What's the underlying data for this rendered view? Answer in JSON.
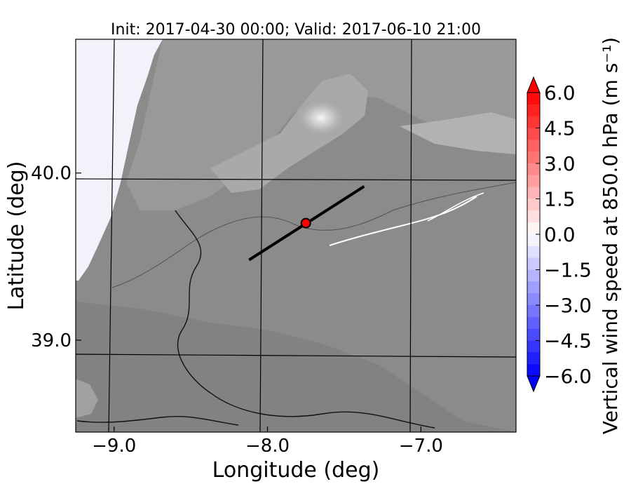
{
  "chart_data": {
    "type": "heatmap",
    "title": "Init: 2017-04-30 00:00; Valid: 2017-06-10 21:00",
    "xlabel": "Longitude (deg)",
    "ylabel": "Latitude (deg)",
    "xlim": [
      -9.25,
      -6.38
    ],
    "ylim": [
      38.45,
      40.8
    ],
    "xticks": [
      -9.0,
      -8.0,
      -7.0
    ],
    "xtick_labels": [
      "−9.0",
      "−8.0",
      "−7.0"
    ],
    "yticks": [
      39.0,
      40.0
    ],
    "ytick_labels": [
      "39.0",
      "40.0"
    ],
    "grid": true,
    "cross_section_line": {
      "start": [
        -8.12,
        39.48
      ],
      "end": [
        -7.37,
        39.92
      ]
    },
    "marker": {
      "lon": -7.75,
      "lat": 39.7,
      "color": "#ff0000"
    },
    "colorbar": {
      "label": "Vertical wind speed at 850.0 hPa (m s⁻¹)",
      "min": -6.0,
      "max": 6.0,
      "ticks": [
        6.0,
        4.5,
        3.0,
        1.5,
        0.0,
        -1.5,
        -3.0,
        -4.5,
        -6.0
      ],
      "tick_labels": [
        "6.0",
        "4.5",
        "3.0",
        "1.5",
        "0.0",
        "−1.5",
        "−3.0",
        "−4.5",
        "−6.0"
      ],
      "extend": "both",
      "colormap": "bwr",
      "low_color": "#0000ff",
      "high_color": "#ff0000"
    },
    "terrain_shading": "gray contours",
    "field_values": "near zero (white) across domain with faint blue offshore at left"
  }
}
